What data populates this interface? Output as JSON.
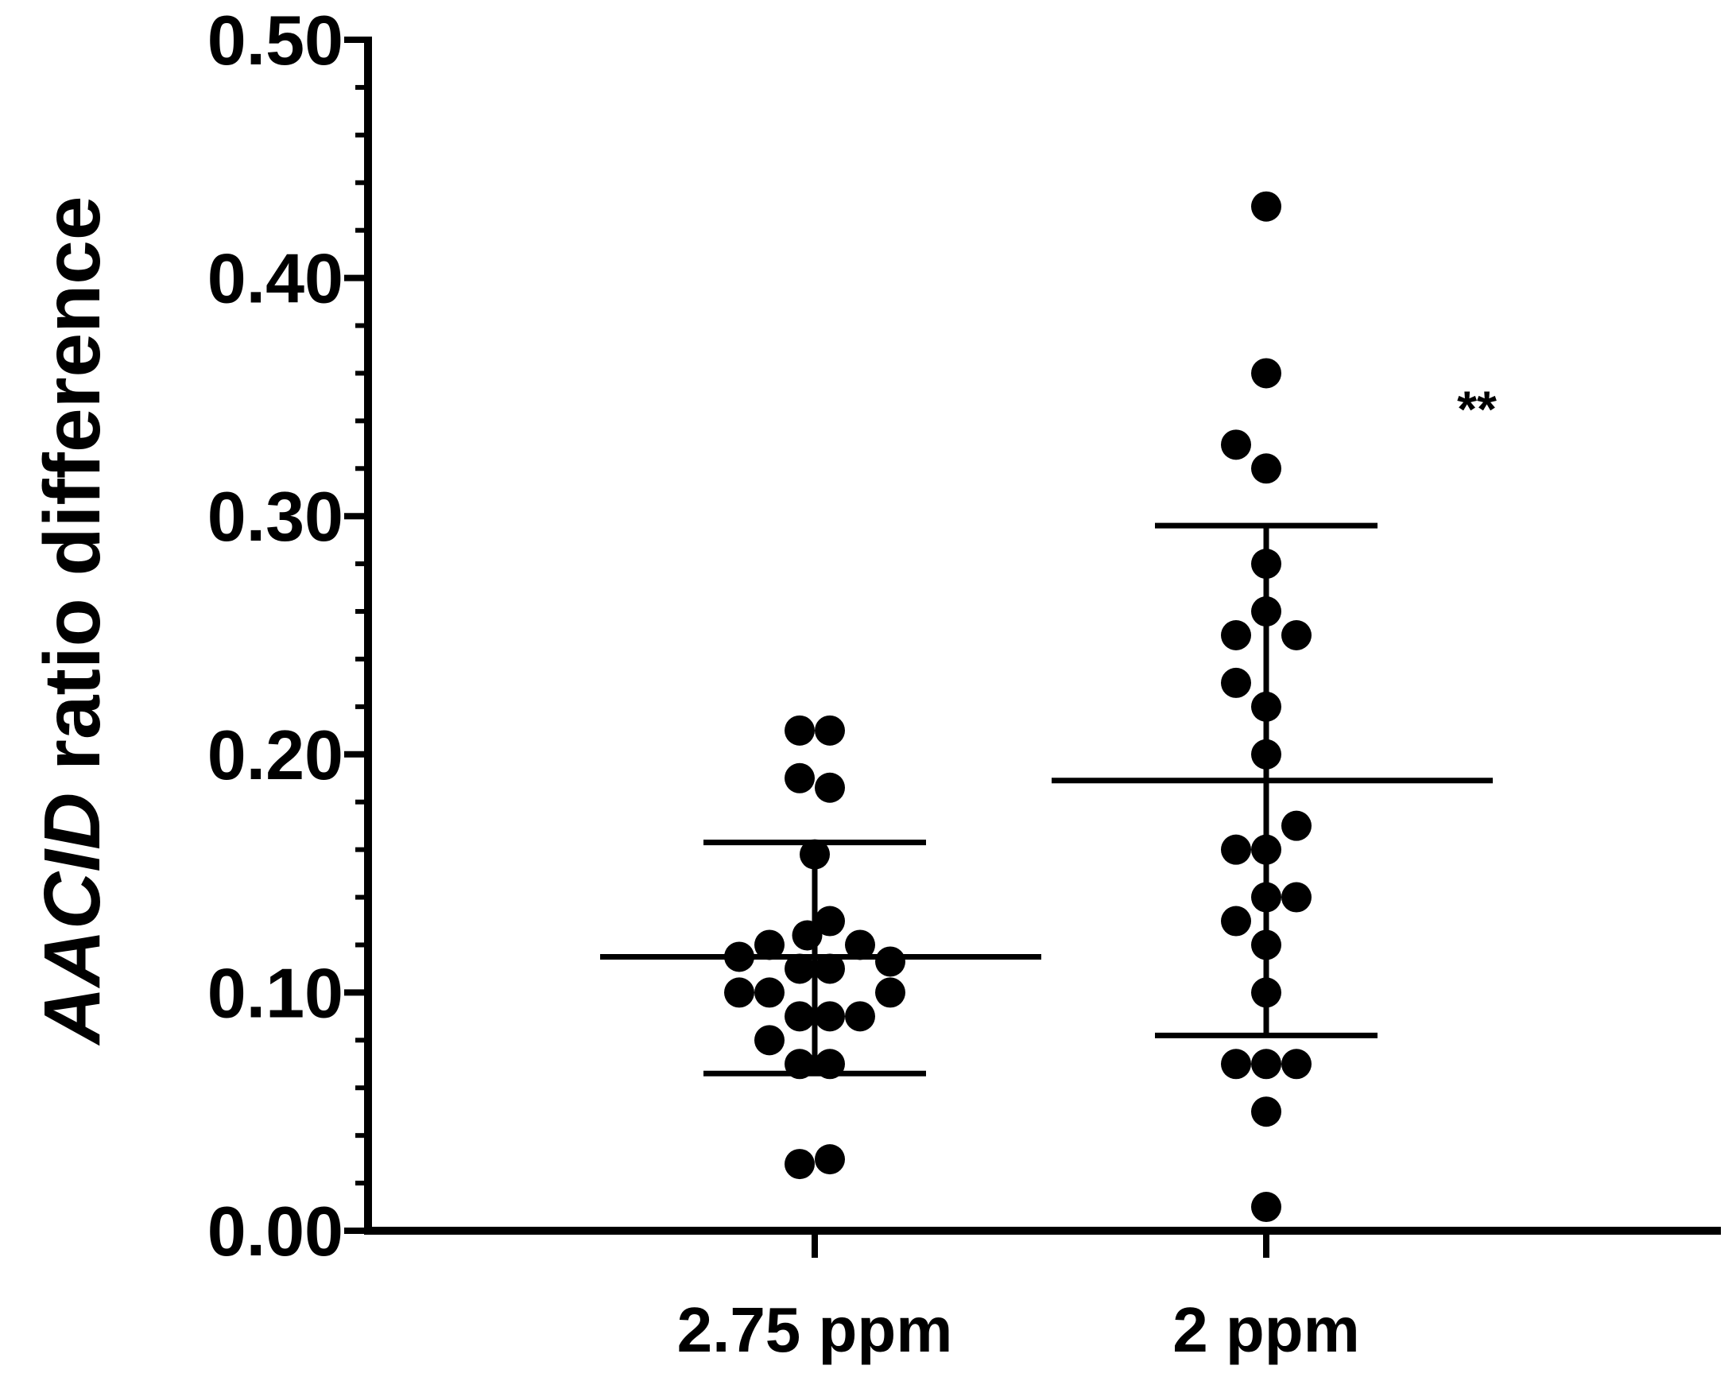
{
  "chart_data": {
    "type": "scatter",
    "subtype": "dot-plot-with-mean-sd",
    "title": "",
    "xlabel": "",
    "ylabel": "AACID ratio difference",
    "ylabel_italic_part": "AACID",
    "ylabel_rest": " ratio difference",
    "ylim": [
      0,
      0.5
    ],
    "yticks": [
      0.0,
      0.1,
      0.2,
      0.3,
      0.4,
      0.5
    ],
    "ytick_labels": [
      "0.00",
      "0.10",
      "0.20",
      "0.30",
      "0.40",
      "0.50"
    ],
    "ytick_minor_step": 0.02,
    "grid": false,
    "categories": [
      "2.75 ppm",
      "2 ppm"
    ],
    "series": [
      {
        "category": "2.75 ppm",
        "values": [
          0.21,
          0.21,
          0.19,
          0.186,
          0.158,
          0.13,
          0.124,
          0.12,
          0.12,
          0.115,
          0.113,
          0.11,
          0.11,
          0.1,
          0.1,
          0.1,
          0.09,
          0.09,
          0.09,
          0.08,
          0.07,
          0.07,
          0.03,
          0.028
        ],
        "x_offsets": [
          -1,
          1,
          -1,
          1,
          0,
          1,
          -0.5,
          -3,
          3,
          -5,
          5,
          -1,
          1,
          -5,
          -3,
          5,
          -1,
          1,
          3,
          -3,
          -1,
          1,
          1,
          -1
        ],
        "mean": 0.115,
        "sd_upper": 0.163,
        "sd_lower": 0.066
      },
      {
        "category": "2 ppm",
        "values": [
          0.43,
          0.36,
          0.33,
          0.32,
          0.28,
          0.26,
          0.25,
          0.25,
          0.23,
          0.22,
          0.2,
          0.17,
          0.16,
          0.16,
          0.14,
          0.14,
          0.13,
          0.12,
          0.1,
          0.07,
          0.07,
          0.07,
          0.05,
          0.01
        ],
        "x_offsets": [
          0,
          0,
          -2,
          0,
          0,
          0,
          -2,
          2,
          -2,
          0,
          0,
          2,
          -2,
          0,
          0,
          2,
          -2,
          0,
          0,
          -2,
          0,
          2,
          0,
          0
        ],
        "mean": 0.189,
        "sd_upper": 0.296,
        "sd_lower": 0.082
      }
    ],
    "annotations": [
      {
        "text": "**",
        "category": "2 ppm",
        "y": 0.345
      }
    ]
  },
  "colors": {
    "ink": "#000000",
    "background": "#ffffff"
  }
}
